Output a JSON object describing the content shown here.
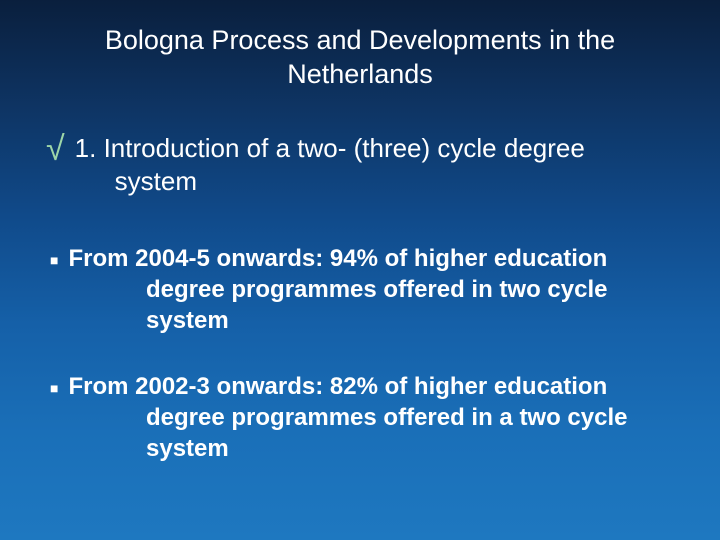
{
  "slide": {
    "background_gradient": [
      "#0a1f3d",
      "#0d2f5a",
      "#104a8a",
      "#1560a8",
      "#1a6fb8",
      "#1e78c0"
    ],
    "text_color": "#ffffff",
    "checkmark_color": "#9dd6a8",
    "title_fontsize": 27,
    "body_fontsize": 26,
    "bullet_fontsize": 24,
    "title": "Bologna Process and Developments in the Netherlands",
    "checkmark": "√",
    "intro_line1": "1. Introduction of a two- (three) cycle degree",
    "intro_line2": "system",
    "bullets": [
      {
        "marker": "■",
        "line1": "From 2004-5 onwards: 94% of higher education",
        "line2": "degree programmes offered in two cycle",
        "line3": "system"
      },
      {
        "marker": "■",
        "line1": "From 2002-3 onwards: 82% of higher education",
        "line2": "degree programmes offered in a two cycle",
        "line3": "system"
      }
    ]
  }
}
